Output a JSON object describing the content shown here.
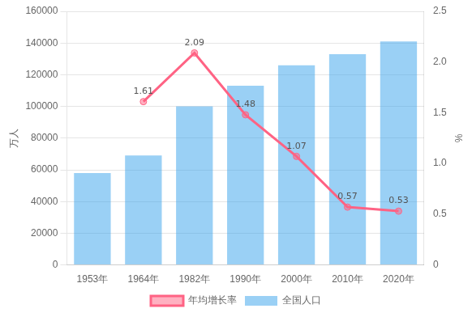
{
  "chart_data": {
    "type": "bar",
    "categories": [
      "1953年",
      "1964年",
      "1982年",
      "1990年",
      "2000年",
      "2010年",
      "2020年"
    ],
    "series": [
      {
        "name": "全国人口",
        "type": "bar",
        "values": [
          58000,
          69000,
          100000,
          113000,
          126000,
          133000,
          141000
        ]
      },
      {
        "name": "年均增长率",
        "type": "line",
        "marker": "circle",
        "axis": "y2",
        "data_labels": true,
        "values": [
          null,
          1.61,
          2.09,
          1.48,
          1.07,
          0.57,
          0.53
        ]
      }
    ],
    "ylim": [
      0,
      160000
    ],
    "yticks": [
      0,
      20000,
      40000,
      60000,
      80000,
      100000,
      120000,
      140000,
      160000
    ],
    "y2lim": [
      0,
      2.5
    ],
    "y2ticks": [
      0,
      0.5,
      {
        "value": 1,
        "label": "1.0"
      },
      1.5,
      {
        "value": 2,
        "label": "2.0"
      },
      2.5
    ],
    "ylabel": "万人",
    "y2label": "%",
    "grid": true,
    "legend": "bottom"
  }
}
